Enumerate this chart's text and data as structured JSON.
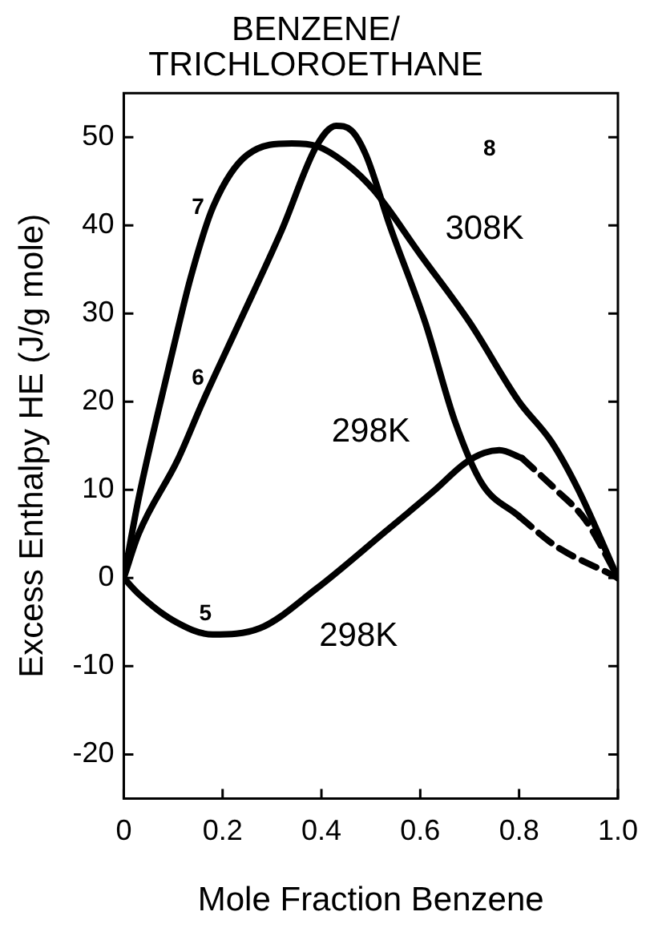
{
  "chart_data": {
    "type": "line",
    "title": "BENZENE/ TRICHLOROETHANE",
    "xlabel": "Mole Fraction Benzene",
    "ylabel": "Excess Enthalpy HE (J/g mole)",
    "xlim": [
      0,
      1
    ],
    "ylim": [
      -25,
      55
    ],
    "xticks": [
      0,
      0.2,
      0.4,
      0.6,
      0.8,
      {
        "value": 1,
        "label": "1.0"
      }
    ],
    "yticks": [
      -20,
      -10,
      0,
      10,
      20,
      30,
      40,
      50
    ],
    "grid": false,
    "legend": false,
    "marker": "none",
    "series": [
      {
        "color": "#000000",
        "line_style": "solid",
        "x": [
          0,
          0.03,
          0.066,
          0.1,
          0.135,
          0.18,
          0.25,
          0.34,
          0.39,
          0.45,
          0.506,
          0.6,
          0.7,
          0.8,
          0.865,
          0.92,
          1
        ],
        "values": [
          0,
          9,
          18,
          26,
          34,
          42,
          48,
          49.3,
          49,
          47,
          44,
          36.7,
          29,
          20,
          15.5,
          10,
          0
        ]
      },
      {
        "color": "#000000",
        "line_style": "solid",
        "x": [
          0,
          0.03,
          0.11,
          0.16,
          0.23,
          0.32,
          0.39,
          0.43,
          0.46,
          0.49,
          0.54,
          0.61,
          0.67,
          0.725,
          0.8
        ],
        "values": [
          0,
          5,
          13.5,
          20,
          28.5,
          39.5,
          49,
          51.3,
          50.8,
          48,
          39.7,
          29,
          17.8,
          10.7,
          7
        ]
      },
      {
        "color": "#000000",
        "line_style": "dashed",
        "x": [
          0.8,
          0.875,
          0.99,
          1
        ],
        "values": [
          7,
          3.6,
          0.3,
          0
        ]
      },
      {
        "color": "#000000",
        "line_style": "solid",
        "x": [
          0,
          0.03,
          0.1,
          0.18,
          0.275,
          0.39,
          0.53,
          0.63,
          0.69,
          0.73,
          0.76,
          0.806
        ],
        "values": [
          0,
          -1.8,
          -4.8,
          -6.4,
          -5.7,
          -1.2,
          5.3,
          10,
          13,
          14.2,
          14.5,
          13.6
        ]
      },
      {
        "color": "#000000",
        "line_style": "dashed",
        "x": [
          0.806,
          0.875,
          0.934,
          0.99,
          1
        ],
        "values": [
          13.6,
          10,
          6.6,
          1.1,
          0
        ]
      }
    ],
    "annotations": [
      "7",
      "6",
      "5",
      "8",
      "308K",
      "298K",
      "298K"
    ]
  }
}
